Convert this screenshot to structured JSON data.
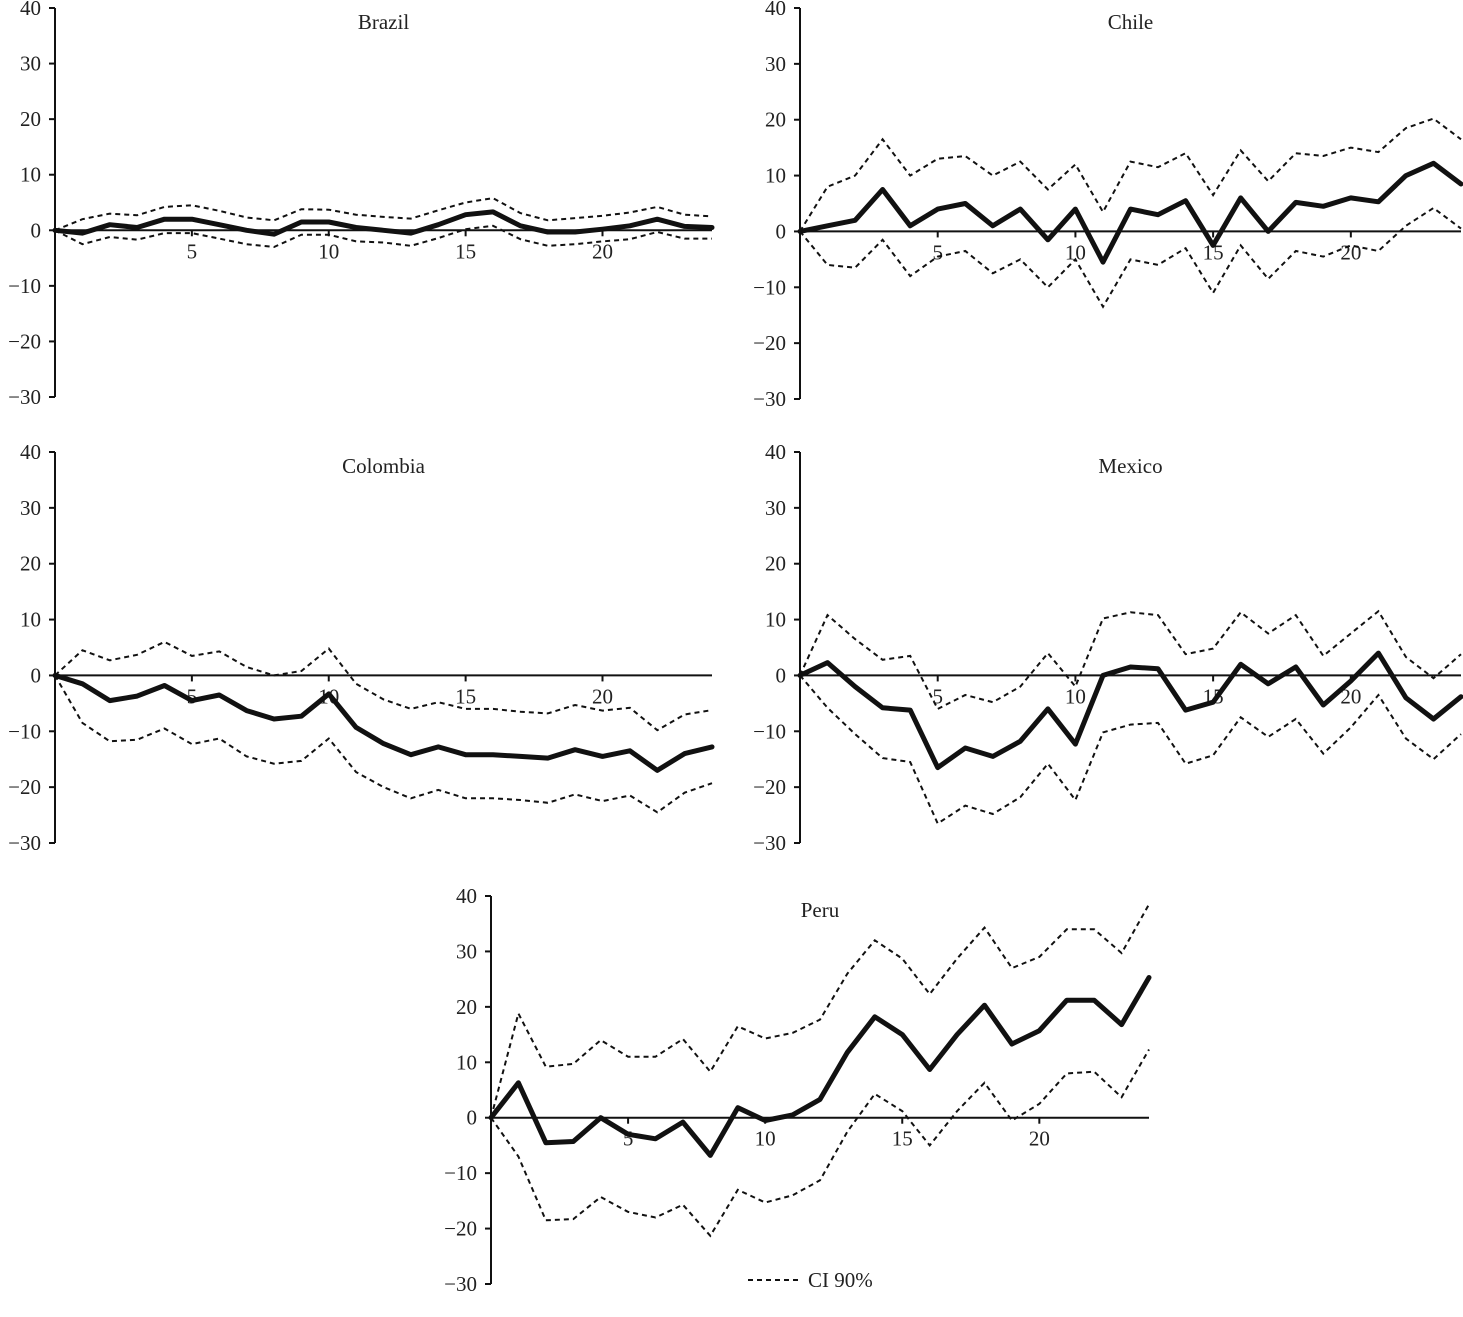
{
  "legend": {
    "ci_label": "CI 90%"
  },
  "chart_data": [
    {
      "type": "line",
      "title": "Brazil",
      "ylim": [
        -30,
        40
      ],
      "yticks": [
        40,
        30,
        20,
        10,
        0,
        -10,
        -20,
        -30
      ],
      "xlim": [
        0,
        24
      ],
      "xticks": [
        5,
        10,
        15,
        20
      ],
      "x": [
        0,
        1,
        2,
        3,
        4,
        5,
        6,
        7,
        8,
        9,
        10,
        11,
        12,
        13,
        14,
        15,
        16,
        17,
        18,
        19,
        20,
        21,
        22,
        23,
        24
      ],
      "series": [
        {
          "role": "estimate",
          "values": [
            0,
            -0.5,
            1,
            0.5,
            2,
            2,
            1,
            0,
            -0.7,
            1.5,
            1.5,
            0.5,
            0,
            -0.5,
            1,
            2.8,
            3.3,
            0.8,
            -0.3,
            -0.3,
            0.2,
            0.8,
            2,
            0.7,
            0.5
          ]
        },
        {
          "name": "CI 90%",
          "role": "ci_upper",
          "values": [
            0,
            2,
            3,
            2.7,
            4.2,
            4.5,
            3.5,
            2.3,
            1.8,
            3.8,
            3.7,
            2.8,
            2.4,
            2.1,
            3.6,
            5,
            5.8,
            3.1,
            1.8,
            2.2,
            2.6,
            3.2,
            4.2,
            2.8,
            2.5
          ]
        },
        {
          "name": "CI 90%",
          "role": "ci_lower",
          "values": [
            0,
            -2.5,
            -1.2,
            -1.7,
            -0.5,
            -0.5,
            -1.5,
            -2.5,
            -3,
            -0.8,
            -0.8,
            -2,
            -2.2,
            -2.8,
            -1.4,
            0.2,
            0.8,
            -1.6,
            -2.8,
            -2.5,
            -2,
            -1.6,
            -0.3,
            -1.5,
            -1.5
          ]
        }
      ]
    },
    {
      "type": "line",
      "title": "Chile",
      "ylim": [
        -30,
        40
      ],
      "yticks": [
        40,
        30,
        20,
        10,
        0,
        -10,
        -20,
        -30
      ],
      "xlim": [
        0,
        24
      ],
      "xticks": [
        5,
        10,
        15,
        20
      ],
      "x": [
        0,
        1,
        2,
        3,
        4,
        5,
        6,
        7,
        8,
        9,
        10,
        11,
        12,
        13,
        14,
        15,
        16,
        17,
        18,
        19,
        20,
        21,
        22,
        23,
        24
      ],
      "series": [
        {
          "role": "estimate",
          "values": [
            0,
            1,
            2,
            7.5,
            1,
            4,
            5,
            1,
            4,
            -1.5,
            4,
            -5.5,
            4,
            3,
            5.5,
            -2.5,
            6,
            0,
            5.2,
            4.5,
            6,
            5.3,
            10,
            12.2,
            8.5
          ]
        },
        {
          "name": "CI 90%",
          "role": "ci_upper",
          "values": [
            0,
            8,
            10,
            16.5,
            10,
            13,
            13.5,
            10,
            12.5,
            7.5,
            12,
            3.5,
            12.5,
            11.5,
            14,
            6.5,
            14.5,
            9,
            14,
            13.5,
            15,
            14.2,
            18.5,
            20.2,
            16.5
          ]
        },
        {
          "name": "CI 90%",
          "role": "ci_lower",
          "values": [
            0,
            -6,
            -6.5,
            -1.5,
            -8,
            -4.5,
            -3.5,
            -7.5,
            -5,
            -10,
            -5,
            -13.5,
            -5,
            -6,
            -3,
            -11,
            -2.5,
            -8.5,
            -3.5,
            -4.5,
            -2.5,
            -3.5,
            1,
            4.2,
            0.5
          ]
        }
      ]
    },
    {
      "type": "line",
      "title": "Colombia",
      "ylim": [
        -30,
        40
      ],
      "yticks": [
        40,
        30,
        20,
        10,
        0,
        -10,
        -20,
        -30
      ],
      "xlim": [
        0,
        24
      ],
      "xticks": [
        5,
        10,
        15,
        20
      ],
      "x": [
        0,
        1,
        2,
        3,
        4,
        5,
        6,
        7,
        8,
        9,
        10,
        11,
        12,
        13,
        14,
        15,
        16,
        17,
        18,
        19,
        20,
        21,
        22,
        23,
        24
      ],
      "series": [
        {
          "role": "estimate",
          "values": [
            0,
            -1.5,
            -4.5,
            -3.7,
            -1.8,
            -4.5,
            -3.5,
            -6.3,
            -7.8,
            -7.3,
            -3.3,
            -9.3,
            -12.2,
            -14.2,
            -12.8,
            -14.2,
            -14.2,
            -14.5,
            -14.8,
            -13.3,
            -14.5,
            -13.5,
            -17,
            -14,
            -12.8
          ]
        },
        {
          "name": "CI 90%",
          "role": "ci_upper",
          "values": [
            0,
            4.5,
            2.7,
            3.7,
            6,
            3.5,
            4.3,
            1.5,
            0,
            0.8,
            4.8,
            -1.5,
            -4.3,
            -6,
            -4.8,
            -6,
            -6,
            -6.5,
            -6.8,
            -5.3,
            -6.3,
            -5.8,
            -9.8,
            -7,
            -6.2
          ]
        },
        {
          "name": "CI 90%",
          "role": "ci_lower",
          "values": [
            0,
            -8.5,
            -11.8,
            -11.5,
            -9.5,
            -12.3,
            -11.3,
            -14.5,
            -15.8,
            -15.3,
            -11.3,
            -17.3,
            -20,
            -22,
            -20.5,
            -22,
            -22,
            -22.3,
            -22.8,
            -21.3,
            -22.5,
            -21.5,
            -24.5,
            -21,
            -19.3
          ]
        }
      ]
    },
    {
      "type": "line",
      "title": "Mexico",
      "ylim": [
        -30,
        40
      ],
      "yticks": [
        40,
        30,
        20,
        10,
        0,
        -10,
        -20,
        -30
      ],
      "xlim": [
        0,
        24
      ],
      "xticks": [
        5,
        10,
        15,
        20
      ],
      "x": [
        0,
        1,
        2,
        3,
        4,
        5,
        6,
        7,
        8,
        9,
        10,
        11,
        12,
        13,
        14,
        15,
        16,
        17,
        18,
        19,
        20,
        21,
        22,
        23,
        24
      ],
      "series": [
        {
          "role": "estimate",
          "values": [
            0,
            2.3,
            -2,
            -5.8,
            -6.2,
            -16.5,
            -13,
            -14.5,
            -11.8,
            -6,
            -12.3,
            0,
            1.5,
            1.2,
            -6.2,
            -4.8,
            2,
            -1.5,
            1.5,
            -5.3,
            -1,
            4,
            -4,
            -7.8,
            -3.8
          ]
        },
        {
          "name": "CI 90%",
          "role": "ci_upper",
          "values": [
            0,
            10.8,
            6.5,
            2.8,
            3.5,
            -6,
            -3.5,
            -4.8,
            -2,
            4,
            -2,
            10.2,
            11.3,
            10.8,
            3.8,
            4.8,
            11.3,
            7.5,
            10.8,
            3.5,
            7.5,
            11.5,
            3.3,
            -0.5,
            3.8
          ]
        },
        {
          "name": "CI 90%",
          "role": "ci_lower",
          "values": [
            0,
            -5.8,
            -10.5,
            -14.8,
            -15.5,
            -26.5,
            -23.3,
            -24.8,
            -21.8,
            -15.8,
            -22.3,
            -10.2,
            -8.8,
            -8.5,
            -15.8,
            -14.3,
            -7.5,
            -11,
            -7.8,
            -14,
            -9.3,
            -3.5,
            -11.3,
            -15,
            -10.5
          ]
        }
      ]
    },
    {
      "type": "line",
      "title": "Peru",
      "ylim": [
        -30,
        40
      ],
      "yticks": [
        40,
        30,
        20,
        10,
        0,
        -10,
        -20,
        -30
      ],
      "xlim": [
        0,
        24
      ],
      "xticks": [
        5,
        10,
        15,
        20
      ],
      "x": [
        0,
        1,
        2,
        3,
        4,
        5,
        6,
        7,
        8,
        9,
        10,
        11,
        12,
        13,
        14,
        15,
        16,
        17,
        18,
        19,
        20,
        21,
        22,
        23,
        24
      ],
      "series": [
        {
          "role": "estimate",
          "values": [
            0,
            6.3,
            -4.5,
            -4.3,
            0,
            -3,
            -3.8,
            -0.8,
            -6.8,
            1.8,
            -0.5,
            0.5,
            3.3,
            11.8,
            18.2,
            15,
            8.7,
            15,
            20.3,
            13.3,
            15.7,
            21.2,
            21.2,
            16.8,
            25.3
          ]
        },
        {
          "name": "CI 90%",
          "role": "ci_upper",
          "values": [
            0,
            18.8,
            9.2,
            9.7,
            14,
            11,
            11,
            14.2,
            8.3,
            16.5,
            14.3,
            15.3,
            17.7,
            26,
            32,
            28.7,
            22.3,
            28.7,
            34.3,
            27,
            29,
            34,
            34,
            29.7,
            38.5
          ]
        },
        {
          "name": "CI 90%",
          "role": "ci_lower",
          "values": [
            0,
            -7,
            -18.5,
            -18.3,
            -14.3,
            -17,
            -18,
            -15.7,
            -21.3,
            -13,
            -15.3,
            -14,
            -11.3,
            -2.5,
            4.3,
            1.2,
            -5,
            1.2,
            6.3,
            -0.5,
            2.5,
            8,
            8.3,
            3.7,
            12.3
          ]
        }
      ]
    }
  ]
}
